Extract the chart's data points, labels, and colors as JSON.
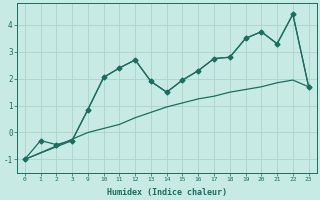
{
  "xlabel": "Humidex (Indice chaleur)",
  "bg_color": "#c8eae4",
  "grid_color": "#a8d4cc",
  "line_color": "#1a6e60",
  "series1_x": [
    0,
    1,
    2,
    3,
    4,
    5,
    6,
    7,
    8,
    9,
    10,
    11,
    12,
    13,
    14,
    15,
    16,
    17,
    18
  ],
  "series1_y": [
    -1.0,
    -0.3,
    -0.45,
    -0.3,
    0.85,
    2.05,
    2.4,
    2.7,
    1.9,
    1.5,
    1.95,
    2.3,
    2.75,
    2.8,
    3.5,
    3.75,
    3.3,
    4.4,
    1.7
  ],
  "series2_x": [
    0,
    4,
    5,
    6,
    7,
    8,
    9,
    10,
    11,
    12,
    13,
    14,
    15,
    16,
    17,
    18
  ],
  "series2_y": [
    -1.0,
    0.0,
    0.15,
    0.3,
    0.55,
    0.75,
    0.95,
    1.1,
    1.25,
    1.35,
    1.5,
    1.6,
    1.7,
    1.85,
    1.95,
    1.7
  ],
  "series3_x": [
    0,
    3,
    4,
    5,
    6,
    7,
    8,
    9,
    10,
    11,
    12,
    13,
    14,
    15,
    16,
    17,
    18
  ],
  "series3_y": [
    -1.0,
    -0.3,
    0.85,
    2.05,
    2.4,
    2.7,
    1.9,
    1.5,
    1.95,
    2.3,
    2.75,
    2.8,
    3.5,
    3.75,
    3.3,
    4.4,
    1.7
  ],
  "xtick_positions": [
    0,
    1,
    2,
    3,
    4,
    5,
    6,
    7,
    8,
    9,
    10,
    11,
    12,
    13,
    14,
    15,
    16,
    17,
    18
  ],
  "xtick_labels": [
    "0",
    "1",
    "2",
    "3",
    "9",
    "10",
    "11",
    "12",
    "13",
    "14",
    "15",
    "16",
    "17",
    "18",
    "19",
    "20",
    "21",
    "22",
    "23"
  ],
  "yticks": [
    -1,
    0,
    1,
    2,
    3,
    4
  ],
  "xlim": [
    -0.5,
    18.5
  ],
  "ylim": [
    -1.5,
    4.8
  ]
}
